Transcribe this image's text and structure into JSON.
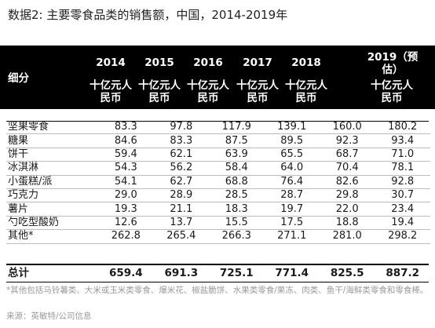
{
  "title": "数据2: 主要零食品类的销售额，中国，2014-2019年",
  "header": {
    "segment_label": "细分",
    "years": [
      "2014",
      "2015",
      "2016",
      "2017",
      "2018",
      "2019（预估）"
    ],
    "unit": "十亿元人民币"
  },
  "rows": [
    {
      "name": "坚果零食",
      "values": [
        "83.3",
        "97.8",
        "117.9",
        "139.1",
        "160.0",
        "180.2"
      ]
    },
    {
      "name": "糖果",
      "values": [
        "84.6",
        "83.3",
        "87.5",
        "89.5",
        "92.3",
        "93.4"
      ]
    },
    {
      "name": "饼干",
      "values": [
        "59.4",
        "62.1",
        "63.9",
        "65.5",
        "68.7",
        "71.0"
      ]
    },
    {
      "name": "冰淇淋",
      "values": [
        "54.3",
        "56.2",
        "58.4",
        "64.0",
        "70.4",
        "78.1"
      ]
    },
    {
      "name": "小蛋糕/派",
      "values": [
        "54.1",
        "62.7",
        "68.8",
        "76.4",
        "82.6",
        "92.8"
      ]
    },
    {
      "name": "巧克力",
      "values": [
        "29.0",
        "28.9",
        "28.5",
        "28.7",
        "29.8",
        "30.7"
      ]
    },
    {
      "name": "薯片",
      "values": [
        "19.3",
        "21.1",
        "18.3",
        "19.7",
        "22.0",
        "23.4"
      ]
    },
    {
      "name": "勺吃型酸奶",
      "values": [
        "12.6",
        "13.7",
        "15.5",
        "17.5",
        "18.8",
        "19.4"
      ]
    },
    {
      "name": "其他*",
      "values": [
        "262.8",
        "265.4",
        "266.3",
        "271.1",
        "281.0",
        "298.2"
      ]
    }
  ],
  "total": {
    "name": "总计",
    "values": [
      "659.4",
      "691.3",
      "725.1",
      "771.4",
      "825.5",
      "887.2"
    ]
  },
  "note": "*其他包括马铃薯类、大米或玉米类零食、爆米花、椒盐脆饼、水果类零食/果冻、肉类、鱼干/海鲜类零食和零食棒。",
  "source": "来源：英敏特/公司信息"
}
